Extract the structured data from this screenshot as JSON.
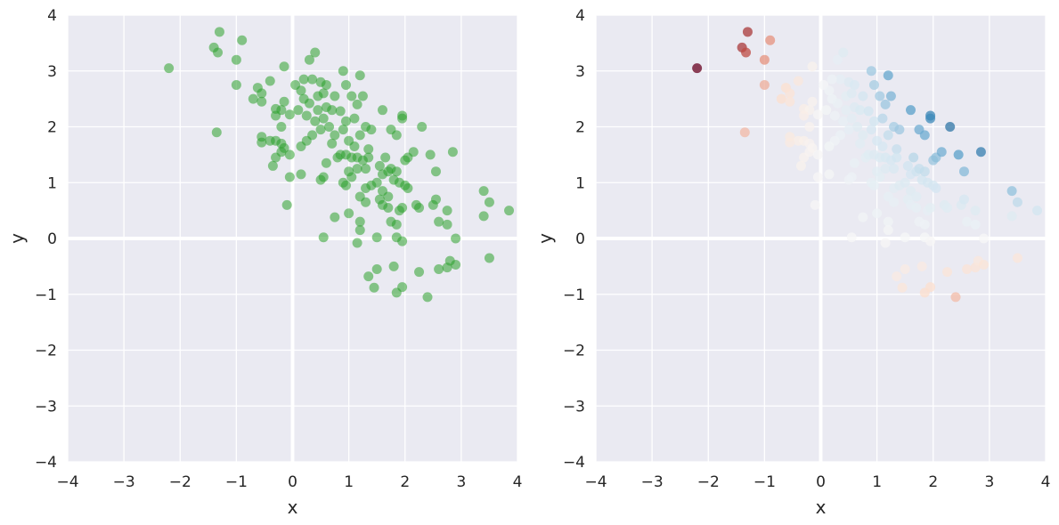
{
  "chart_data": [
    {
      "type": "scatter",
      "xlabel": "x",
      "ylabel": "y",
      "xlim": [
        -4,
        4
      ],
      "ylim": [
        -4,
        4
      ],
      "xticks": [
        "−4",
        "−3",
        "−2",
        "−1",
        "0",
        "1",
        "2",
        "3",
        "4"
      ],
      "yticks": [
        "−4",
        "−3",
        "−2",
        "−1",
        "0",
        "1",
        "2",
        "3",
        "4"
      ],
      "grid": true,
      "background": "#eaeaf2",
      "grid_color": "#ffffff",
      "color_mode": "single",
      "marker_color": "#2ca02c",
      "marker_alpha": 0.55,
      "points_ref": "points"
    },
    {
      "type": "scatter",
      "xlabel": "x",
      "ylabel": "y",
      "xlim": [
        -4,
        4
      ],
      "ylim": [
        -4,
        4
      ],
      "xticks": [
        "−4",
        "−3",
        "−2",
        "−1",
        "0",
        "1",
        "2",
        "3",
        "4"
      ],
      "yticks": [
        "−4",
        "−3",
        "−2",
        "−1",
        "0",
        "1",
        "2",
        "3",
        "4"
      ],
      "grid": true,
      "background": "#eaeaf2",
      "grid_color": "#ffffff",
      "color_mode": "quadrant_diverging",
      "colormap": "RdBu",
      "colormap_stops": [
        "#67001f",
        "#d6604d",
        "#fddbc7",
        "#f7f7f7",
        "#d1e5f0",
        "#4393c3",
        "#053061"
      ],
      "color_rule": "value = x * y; x*y > 0 → blue shades, x*y < 0 → red shades",
      "marker_alpha": 0.75,
      "points_ref": "points"
    }
  ],
  "points": [
    [
      -2.2,
      3.05
    ],
    [
      -1.3,
      3.7
    ],
    [
      -1.4,
      3.42
    ],
    [
      -1.33,
      3.33
    ],
    [
      -0.9,
      3.55
    ],
    [
      -1.0,
      3.2
    ],
    [
      -1.0,
      2.75
    ],
    [
      -1.35,
      1.9
    ],
    [
      -0.62,
      2.7
    ],
    [
      -0.55,
      2.6
    ],
    [
      -0.7,
      2.5
    ],
    [
      -0.4,
      2.82
    ],
    [
      -0.15,
      3.08
    ],
    [
      -0.55,
      2.45
    ],
    [
      -0.3,
      2.32
    ],
    [
      -0.2,
      2.3
    ],
    [
      -0.15,
      2.45
    ],
    [
      -0.3,
      2.2
    ],
    [
      -0.05,
      2.22
    ],
    [
      -0.2,
      2.0
    ],
    [
      -0.55,
      1.82
    ],
    [
      -0.4,
      1.75
    ],
    [
      -0.3,
      1.75
    ],
    [
      -0.2,
      1.7
    ],
    [
      -0.55,
      1.72
    ],
    [
      -0.15,
      1.62
    ],
    [
      -0.3,
      1.45
    ],
    [
      -0.35,
      1.3
    ],
    [
      -0.2,
      1.55
    ],
    [
      -0.05,
      1.5
    ],
    [
      -0.05,
      1.1
    ],
    [
      -0.1,
      0.6
    ],
    [
      0.3,
      3.2
    ],
    [
      0.4,
      3.33
    ],
    [
      0.35,
      2.85
    ],
    [
      0.2,
      2.85
    ],
    [
      0.05,
      2.75
    ],
    [
      0.15,
      2.65
    ],
    [
      0.5,
      2.8
    ],
    [
      0.6,
      2.75
    ],
    [
      0.9,
      3.0
    ],
    [
      1.2,
      2.92
    ],
    [
      0.95,
      2.75
    ],
    [
      0.2,
      2.5
    ],
    [
      0.3,
      2.42
    ],
    [
      0.45,
      2.55
    ],
    [
      0.55,
      2.6
    ],
    [
      0.75,
      2.55
    ],
    [
      1.05,
      2.55
    ],
    [
      1.25,
      2.55
    ],
    [
      0.6,
      2.35
    ],
    [
      0.7,
      2.3
    ],
    [
      0.45,
      2.3
    ],
    [
      0.25,
      2.2
    ],
    [
      0.1,
      2.3
    ],
    [
      0.85,
      2.28
    ],
    [
      1.15,
      2.4
    ],
    [
      0.4,
      2.1
    ],
    [
      0.55,
      2.15
    ],
    [
      0.65,
      2.0
    ],
    [
      0.5,
      1.95
    ],
    [
      0.35,
      1.85
    ],
    [
      0.25,
      1.75
    ],
    [
      0.15,
      1.65
    ],
    [
      0.75,
      1.85
    ],
    [
      0.95,
      2.1
    ],
    [
      1.1,
      2.15
    ],
    [
      1.3,
      2.0
    ],
    [
      1.4,
      1.95
    ],
    [
      1.2,
      1.85
    ],
    [
      0.9,
      1.95
    ],
    [
      1.0,
      1.75
    ],
    [
      1.1,
      1.65
    ],
    [
      1.35,
      1.6
    ],
    [
      1.75,
      1.95
    ],
    [
      1.85,
      1.85
    ],
    [
      1.6,
      2.3
    ],
    [
      1.95,
      2.2
    ],
    [
      1.95,
      2.15
    ],
    [
      2.3,
      2.0
    ],
    [
      0.15,
      1.15
    ],
    [
      0.5,
      1.05
    ],
    [
      0.55,
      1.1
    ],
    [
      0.6,
      1.35
    ],
    [
      0.7,
      1.7
    ],
    [
      0.8,
      1.45
    ],
    [
      0.85,
      1.5
    ],
    [
      0.95,
      1.5
    ],
    [
      1.05,
      1.45
    ],
    [
      1.15,
      1.45
    ],
    [
      1.25,
      1.4
    ],
    [
      1.35,
      1.45
    ],
    [
      1.0,
      1.2
    ],
    [
      1.15,
      1.25
    ],
    [
      1.3,
      1.25
    ],
    [
      0.9,
      1.0
    ],
    [
      0.95,
      0.95
    ],
    [
      1.05,
      1.1
    ],
    [
      1.3,
      0.9
    ],
    [
      1.4,
      0.95
    ],
    [
      1.5,
      1.0
    ],
    [
      1.6,
      1.15
    ],
    [
      1.7,
      1.2
    ],
    [
      1.8,
      1.05
    ],
    [
      1.9,
      1.0
    ],
    [
      1.55,
      1.3
    ],
    [
      1.65,
      1.45
    ],
    [
      1.75,
      1.25
    ],
    [
      1.85,
      1.2
    ],
    [
      2.0,
      1.4
    ],
    [
      2.05,
      1.45
    ],
    [
      2.15,
      1.55
    ],
    [
      2.45,
      1.5
    ],
    [
      2.85,
      1.55
    ],
    [
      2.55,
      1.2
    ],
    [
      1.6,
      0.85
    ],
    [
      1.7,
      0.75
    ],
    [
      1.55,
      0.7
    ],
    [
      2.0,
      0.95
    ],
    [
      2.05,
      0.9
    ],
    [
      1.2,
      0.75
    ],
    [
      1.3,
      0.65
    ],
    [
      1.6,
      0.6
    ],
    [
      1.7,
      0.55
    ],
    [
      1.9,
      0.5
    ],
    [
      1.95,
      0.55
    ],
    [
      2.2,
      0.6
    ],
    [
      2.25,
      0.55
    ],
    [
      2.5,
      0.6
    ],
    [
      2.55,
      0.7
    ],
    [
      2.75,
      0.5
    ],
    [
      1.0,
      0.45
    ],
    [
      0.75,
      0.38
    ],
    [
      1.2,
      0.3
    ],
    [
      1.75,
      0.3
    ],
    [
      1.85,
      0.25
    ],
    [
      2.6,
      0.3
    ],
    [
      2.75,
      0.25
    ],
    [
      3.4,
      0.85
    ],
    [
      3.5,
      0.65
    ],
    [
      3.4,
      0.4
    ],
    [
      3.85,
      0.5
    ],
    [
      0.55,
      0.02
    ],
    [
      1.2,
      0.15
    ],
    [
      1.15,
      -0.08
    ],
    [
      1.5,
      0.02
    ],
    [
      1.85,
      0.02
    ],
    [
      1.95,
      -0.05
    ],
    [
      2.9,
      0.0
    ],
    [
      1.35,
      -0.68
    ],
    [
      1.5,
      -0.55
    ],
    [
      1.45,
      -0.88
    ],
    [
      1.8,
      -0.5
    ],
    [
      1.85,
      -0.97
    ],
    [
      1.95,
      -0.87
    ],
    [
      2.25,
      -0.6
    ],
    [
      2.4,
      -1.05
    ],
    [
      2.6,
      -0.55
    ],
    [
      2.75,
      -0.52
    ],
    [
      2.8,
      -0.4
    ],
    [
      2.9,
      -0.47
    ],
    [
      3.5,
      -0.35
    ]
  ]
}
